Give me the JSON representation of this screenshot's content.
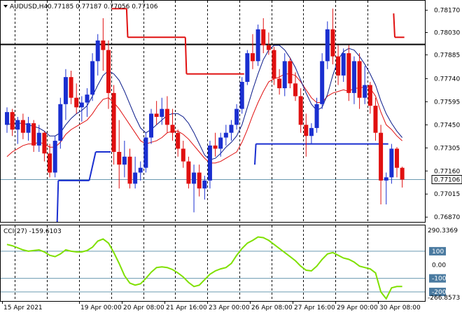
{
  "chart_data": [
    {
      "type": "candlestick",
      "title": "AUDUSD,H4",
      "ohlc_label": "0.77185 0.77187 0.77056 0.77106",
      "last_price": 0.77106,
      "last_price_label": "0.77106",
      "ylim": [
        0.7684,
        0.7823
      ],
      "y_ticks": [
        0.7817,
        0.7803,
        0.7789,
        0.7774,
        0.77595,
        0.7745,
        0.77305,
        0.7716,
        0.77015,
        0.7687
      ],
      "y_tick_labels": [
        "0.78170",
        "0.78030",
        "0.77885",
        "0.77740",
        "0.77595",
        "0.77450",
        "0.77305",
        "0.77160",
        "0.77015",
        "0.76870"
      ],
      "horizontal_level": 0.77955,
      "x_labels": [
        "15 Apr 2021",
        "19 Apr 00:00",
        "20 Apr 08:00",
        "21 Apr 16:00",
        "23 Apr 00:00",
        "26 Apr 08:00",
        "27 Apr 16:00",
        "29 Apr 00:00",
        "30 Apr 08:00"
      ],
      "x_label_bars": [
        0,
        14,
        22,
        30,
        38,
        46,
        54,
        62,
        70
      ],
      "period_separator_bars": [
        2,
        8,
        14,
        20,
        26,
        32,
        38,
        44,
        50,
        56,
        62,
        68
      ],
      "up_color": "#1a2fd0",
      "down_color": "#e01010",
      "bars": [
        [
          0.7745,
          0.7756,
          0.774,
          0.7753
        ],
        [
          0.7753,
          0.7755,
          0.7738,
          0.7742
        ],
        [
          0.7742,
          0.775,
          0.7733,
          0.7748
        ],
        [
          0.7748,
          0.7752,
          0.7736,
          0.774
        ],
        [
          0.774,
          0.775,
          0.7735,
          0.7746
        ],
        [
          0.7746,
          0.7748,
          0.7728,
          0.7732
        ],
        [
          0.7732,
          0.7745,
          0.7728,
          0.774
        ],
        [
          0.774,
          0.7741,
          0.7722,
          0.7727
        ],
        [
          0.7727,
          0.7733,
          0.7712,
          0.7715
        ],
        [
          0.7715,
          0.7738,
          0.7712,
          0.7735
        ],
        [
          0.7735,
          0.7762,
          0.773,
          0.7758
        ],
        [
          0.7758,
          0.778,
          0.7748,
          0.7775
        ],
        [
          0.7775,
          0.7779,
          0.7758,
          0.7762
        ],
        [
          0.7762,
          0.7771,
          0.7752,
          0.7756
        ],
        [
          0.7756,
          0.7763,
          0.7747,
          0.7759
        ],
        [
          0.7759,
          0.7768,
          0.775,
          0.7764
        ],
        [
          0.7764,
          0.779,
          0.776,
          0.7785
        ],
        [
          0.7785,
          0.7802,
          0.7776,
          0.7798
        ],
        [
          0.7798,
          0.7812,
          0.7779,
          0.7792
        ],
        [
          0.7792,
          0.7798,
          0.7755,
          0.7765
        ],
        [
          0.7765,
          0.777,
          0.772,
          0.7728
        ],
        [
          0.7728,
          0.7748,
          0.7705,
          0.772
        ],
        [
          0.772,
          0.7735,
          0.7712,
          0.7725
        ],
        [
          0.7725,
          0.773,
          0.7705,
          0.7708
        ],
        [
          0.7708,
          0.7725,
          0.7705,
          0.7715
        ],
        [
          0.7715,
          0.7722,
          0.771,
          0.7718
        ],
        [
          0.7718,
          0.774,
          0.7715,
          0.7737
        ],
        [
          0.7737,
          0.7755,
          0.7733,
          0.7752
        ],
        [
          0.7752,
          0.776,
          0.7745,
          0.775
        ],
        [
          0.775,
          0.7762,
          0.7745,
          0.7755
        ],
        [
          0.7755,
          0.7763,
          0.774,
          0.7745
        ],
        [
          0.7745,
          0.7755,
          0.7735,
          0.774
        ],
        [
          0.774,
          0.7742,
          0.7725,
          0.773
        ],
        [
          0.773,
          0.7735,
          0.7718,
          0.7722
        ],
        [
          0.7722,
          0.7725,
          0.7705,
          0.7708
        ],
        [
          0.7708,
          0.772,
          0.769,
          0.7715
        ],
        [
          0.7715,
          0.772,
          0.77,
          0.7705
        ],
        [
          0.7705,
          0.7713,
          0.7698,
          0.771
        ],
        [
          0.771,
          0.7735,
          0.7705,
          0.7732
        ],
        [
          0.7732,
          0.774,
          0.7725,
          0.773
        ],
        [
          0.773,
          0.774,
          0.7725,
          0.7737
        ],
        [
          0.7737,
          0.7745,
          0.7732,
          0.774
        ],
        [
          0.774,
          0.7748,
          0.7735,
          0.7745
        ],
        [
          0.7745,
          0.7758,
          0.7742,
          0.7755
        ],
        [
          0.7755,
          0.7775,
          0.7752,
          0.7772
        ],
        [
          0.7772,
          0.7792,
          0.777,
          0.779
        ],
        [
          0.779,
          0.7802,
          0.778,
          0.7785
        ],
        [
          0.7785,
          0.7808,
          0.7782,
          0.7805
        ],
        [
          0.7805,
          0.7812,
          0.779,
          0.7795
        ],
        [
          0.7795,
          0.7803,
          0.7789,
          0.7792
        ],
        [
          0.7792,
          0.7794,
          0.777,
          0.7774
        ],
        [
          0.7774,
          0.778,
          0.7764,
          0.7768
        ],
        [
          0.7768,
          0.779,
          0.7763,
          0.7785
        ],
        [
          0.7785,
          0.7787,
          0.7768,
          0.7771
        ],
        [
          0.7771,
          0.7778,
          0.776,
          0.7763
        ],
        [
          0.7763,
          0.7768,
          0.774,
          0.7745
        ],
        [
          0.7745,
          0.7752,
          0.7725,
          0.7738
        ],
        [
          0.7738,
          0.7746,
          0.7733,
          0.7743
        ],
        [
          0.7743,
          0.7762,
          0.774,
          0.7758
        ],
        [
          0.7758,
          0.779,
          0.7755,
          0.7785
        ],
        [
          0.7785,
          0.781,
          0.778,
          0.7805
        ],
        [
          0.7805,
          0.7818,
          0.7783,
          0.7788
        ],
        [
          0.7788,
          0.7795,
          0.777,
          0.7776
        ],
        [
          0.7776,
          0.7793,
          0.7772,
          0.779
        ],
        [
          0.779,
          0.7795,
          0.776,
          0.7765
        ],
        [
          0.7765,
          0.7788,
          0.7758,
          0.7785
        ],
        [
          0.7785,
          0.779,
          0.7755,
          0.7762
        ],
        [
          0.7762,
          0.7782,
          0.7758,
          0.777
        ],
        [
          0.777,
          0.7772,
          0.7752,
          0.7757
        ],
        [
          0.7757,
          0.7762,
          0.7735,
          0.774
        ],
        [
          0.774,
          0.7745,
          0.7695,
          0.771
        ],
        [
          0.771,
          0.7715,
          0.7695,
          0.7712
        ],
        [
          0.7712,
          0.7733,
          0.7708,
          0.773
        ],
        [
          0.773,
          0.7731,
          0.7712,
          0.7718
        ],
        [
          0.7718,
          0.77187,
          0.77056,
          0.77106
        ]
      ],
      "series": [
        {
          "name": "ma_fast",
          "color": "#e01010",
          "values": [
            0.7725,
            0.7728,
            0.773,
            0.7732,
            0.7733,
            0.7733,
            0.7734,
            0.7733,
            0.7731,
            0.7731,
            0.7734,
            0.7739,
            0.7742,
            0.7744,
            0.7746,
            0.7748,
            0.7752,
            0.7757,
            0.7761,
            0.7762,
            0.7759,
            0.7755,
            0.775,
            0.7745,
            0.774,
            0.7735,
            0.7733,
            0.7734,
            0.7735,
            0.7737,
            0.774,
            0.7741,
            0.7741,
            0.7739,
            0.7736,
            0.7732,
            0.7728,
            0.7724,
            0.7721,
            0.7721,
            0.7722,
            0.7724,
            0.7726,
            0.7728,
            0.7734,
            0.7742,
            0.7751,
            0.7759,
            0.7766,
            0.7772,
            0.7774,
            0.7775,
            0.7777,
            0.7777,
            0.7776,
            0.7772,
            0.7767,
            0.7762,
            0.7759,
            0.7759,
            0.7763,
            0.7765,
            0.7766,
            0.7767,
            0.7766,
            0.7768,
            0.7768,
            0.7769,
            0.7768,
            0.7763,
            0.7753,
            0.7745,
            0.7742,
            0.7738,
            0.7735
          ]
        },
        {
          "name": "ma_slow",
          "color": "#0a1a8a",
          "values": [
            0.7745,
            0.7746,
            0.7746,
            0.7746,
            0.7745,
            0.7744,
            0.7743,
            0.7741,
            0.7738,
            0.7738,
            0.774,
            0.7745,
            0.7749,
            0.7752,
            0.7754,
            0.7757,
            0.7763,
            0.777,
            0.7776,
            0.7779,
            0.7777,
            0.7773,
            0.7766,
            0.7758,
            0.775,
            0.7743,
            0.774,
            0.7742,
            0.7745,
            0.7748,
            0.7751,
            0.7752,
            0.7752,
            0.775,
            0.7746,
            0.774,
            0.7733,
            0.7726,
            0.7723,
            0.7724,
            0.7727,
            0.7731,
            0.7734,
            0.7738,
            0.7745,
            0.7756,
            0.7767,
            0.7777,
            0.7786,
            0.7792,
            0.7795,
            0.7795,
            0.7792,
            0.7787,
            0.7781,
            0.7773,
            0.7765,
            0.7758,
            0.7754,
            0.7756,
            0.7764,
            0.7776,
            0.7786,
            0.7791,
            0.7793,
            0.7792,
            0.7788,
            0.7783,
            0.7777,
            0.777,
            0.776,
            0.7752,
            0.7746,
            0.7741,
            0.7737
          ]
        }
      ],
      "stop_levels": [
        {
          "name": "upper",
          "color": "#e01010",
          "segments": [
            [
              20,
              22,
              0.7818
            ],
            [
              23,
              33,
              0.78
            ],
            [
              34,
              44,
              0.7777
            ],
            [
              73,
              74,
              0.78
            ]
          ],
          "connectors": [
            [
              22,
              0.7818,
              23,
              0.78
            ],
            [
              33,
              0.78,
              34,
              0.7777
            ],
            [
              72,
              0.7815,
              73,
              0.78
            ]
          ]
        },
        {
          "name": "lower",
          "color": "#1a2fd0",
          "segments": [
            [
              10,
              15,
              0.771
            ],
            [
              17,
              19,
              0.7728
            ],
            [
              47,
              71,
              0.7733
            ]
          ],
          "connectors": [
            [
              9,
              0.7684,
              10,
              0.771
            ],
            [
              15,
              0.771,
              17,
              0.7728
            ],
            [
              46,
              0.772,
              47,
              0.7733
            ]
          ]
        }
      ]
    },
    {
      "type": "line",
      "title": "CCI(27) -159.6103",
      "ylim": [
        -266.8573,
        290.3369
      ],
      "y_ticks": [
        290.3369,
        100,
        0,
        -100,
        -200,
        -266.8573
      ],
      "y_tick_labels": [
        "290.3369",
        "100",
        "0.00",
        "-100",
        "-200",
        "-266.8573"
      ],
      "levels": [
        100,
        -100,
        -200
      ],
      "highlight_labels": [
        "100",
        "-100",
        "-200"
      ],
      "series": [
        {
          "name": "CCI",
          "color": "#7fe000",
          "values": [
            150,
            140,
            125,
            110,
            100,
            105,
            110,
            95,
            70,
            60,
            80,
            110,
            100,
            95,
            95,
            105,
            130,
            175,
            190,
            160,
            90,
            10,
            -80,
            -135,
            -150,
            -140,
            -100,
            -55,
            -20,
            -15,
            -20,
            -35,
            -60,
            -90,
            -130,
            -160,
            -150,
            -110,
            -70,
            -45,
            -30,
            -20,
            10,
            70,
            120,
            160,
            180,
            205,
            200,
            180,
            150,
            120,
            90,
            60,
            30,
            -10,
            -40,
            -45,
            -10,
            40,
            80,
            90,
            70,
            50,
            40,
            20,
            -10,
            -20,
            -30,
            -60,
            -200,
            -250,
            -170,
            -160,
            -160
          ]
        }
      ]
    }
  ]
}
